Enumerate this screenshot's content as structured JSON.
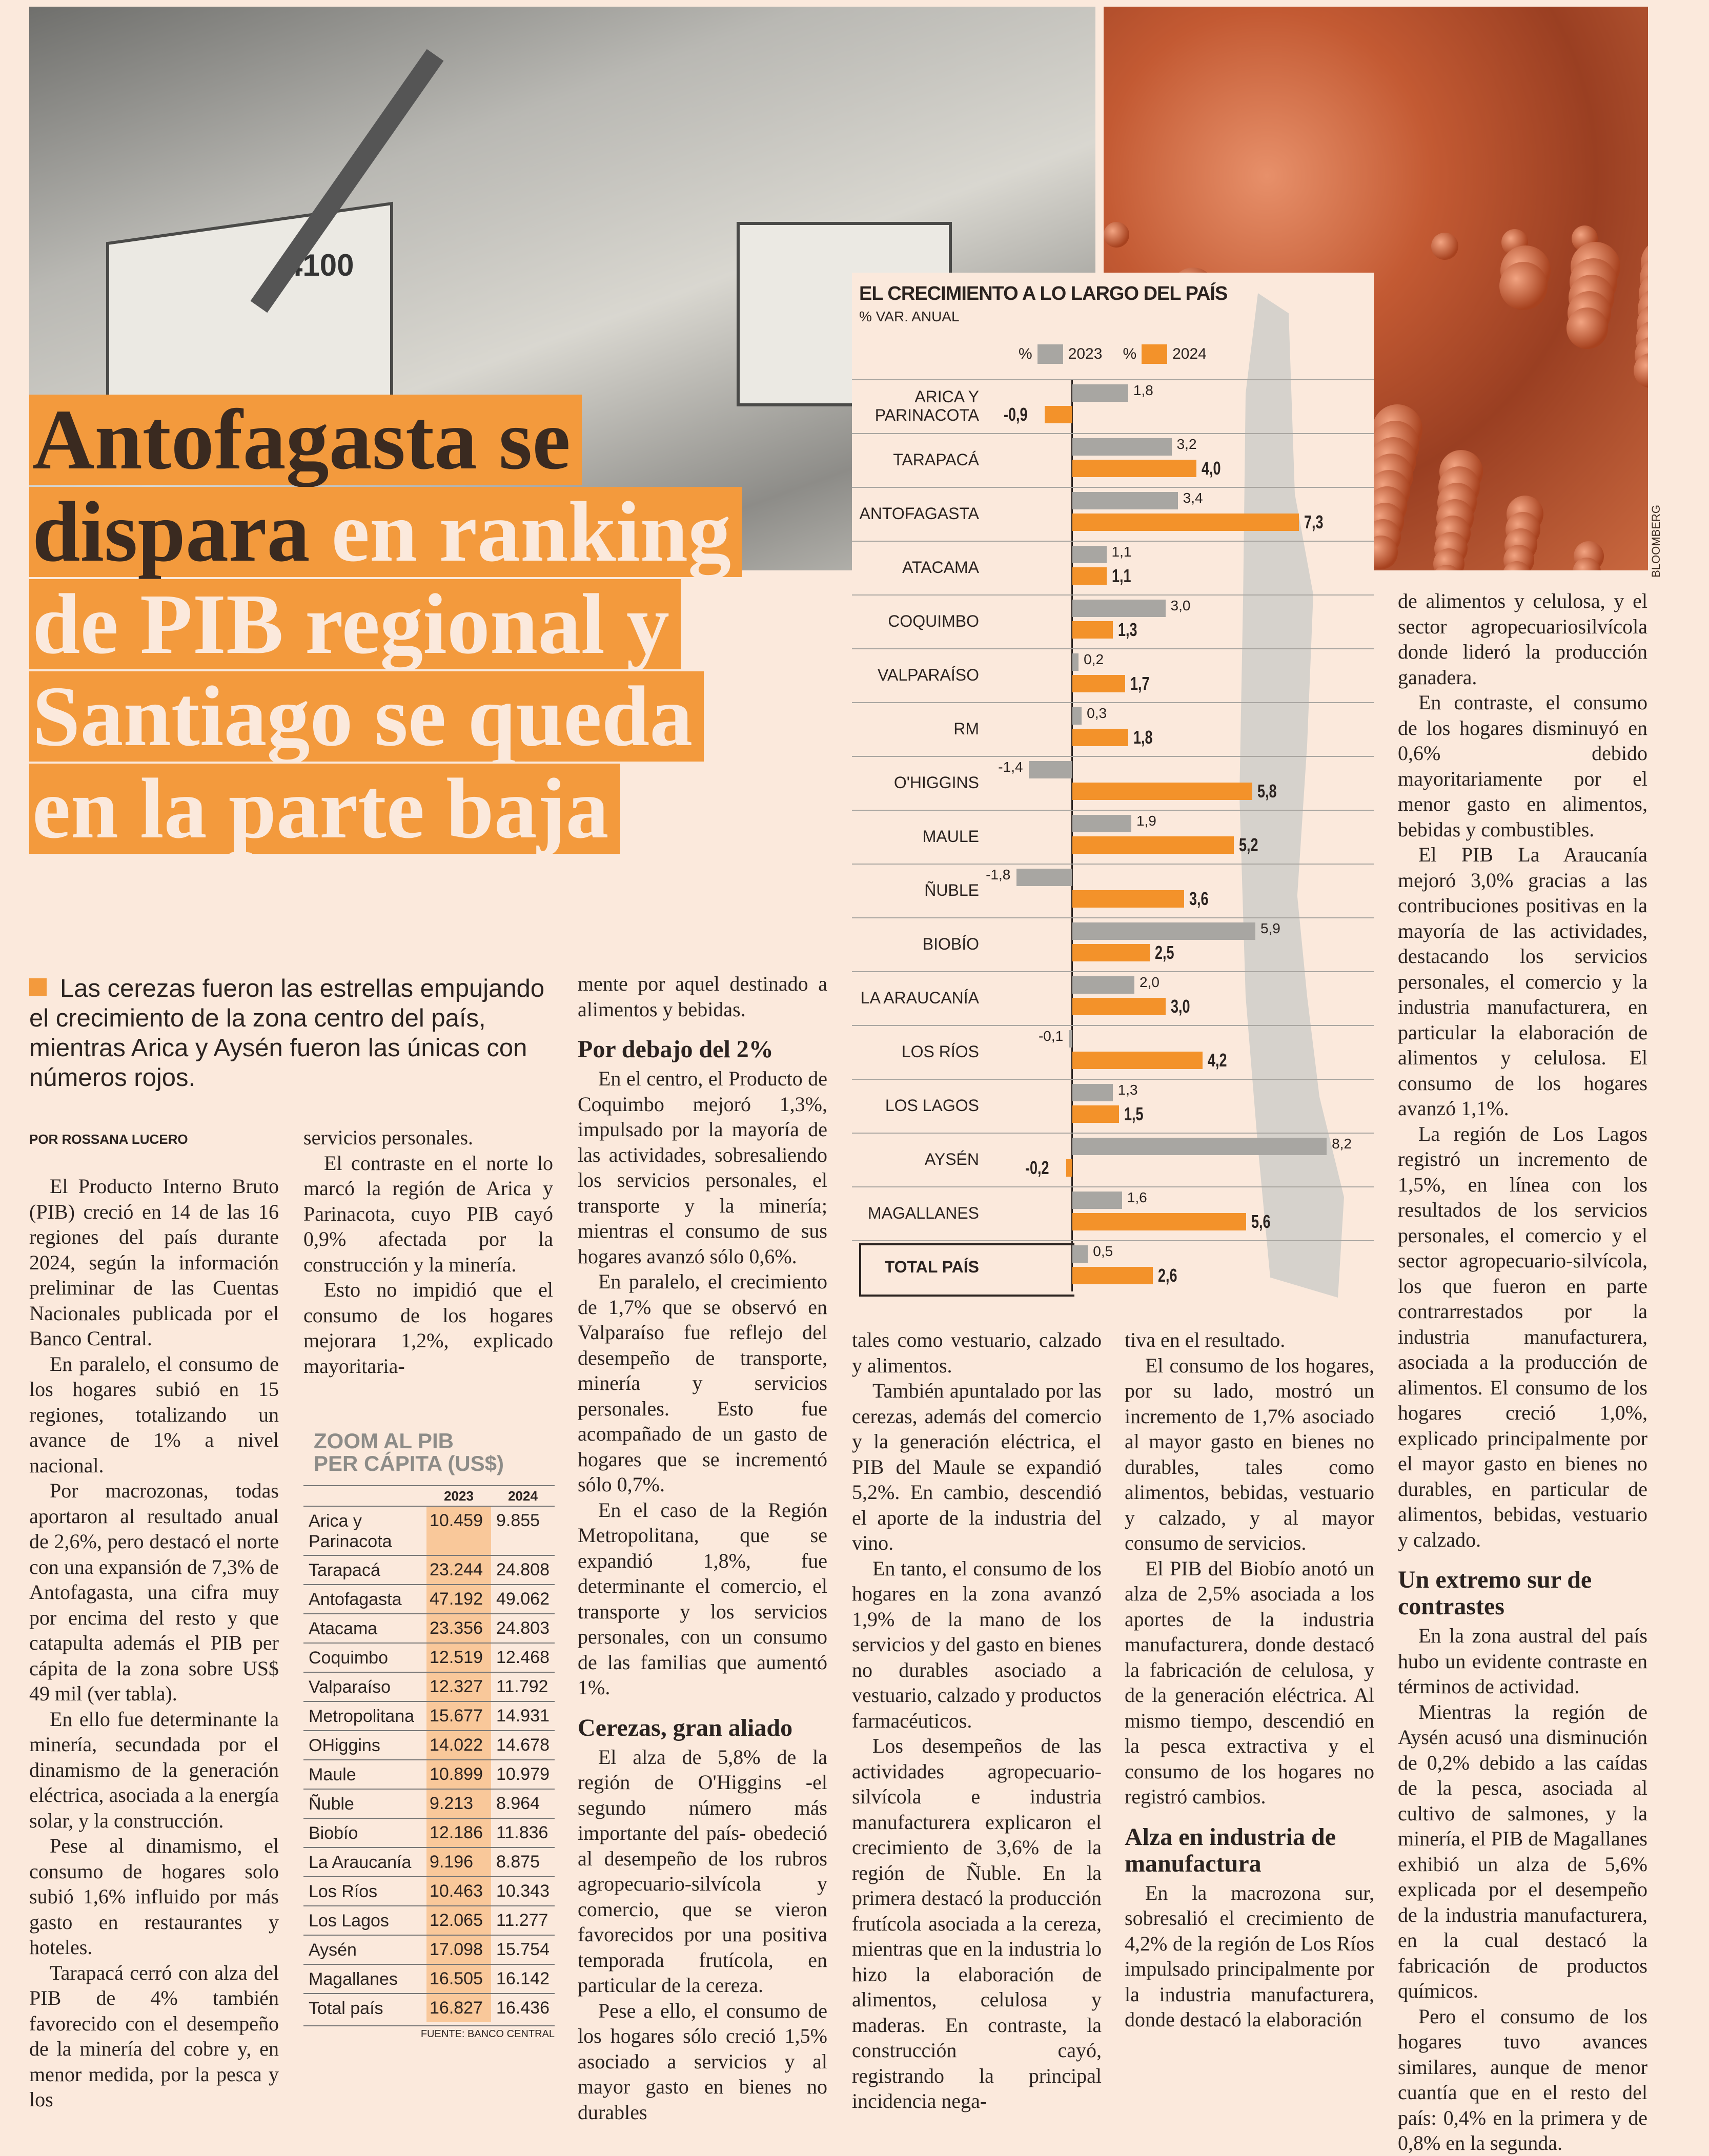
{
  "headline": {
    "dark": [
      "Antofagasta se",
      "dispara"
    ],
    "dark_tail": " en ranking",
    "light": [
      "de PIB regional y",
      "Santiago se queda",
      "en la parte baja"
    ]
  },
  "photo_credit": "BLOOMBERG",
  "machine_label": "4100",
  "lead": "Las cerezas fueron las estrellas empujando el crecimiento de la zona centro del país, mientras Arica y Aysén fueron las únicas con números rojos.",
  "byline": "POR ROSSANA LUCERO",
  "columns": [
    [
      {
        "t": "p",
        "text": "El Producto Interno Bruto (PIB) creció en 14 de las 16 regiones del país durante 2024, según la información preliminar de las Cuentas Nacionales publicada por el Banco Central."
      },
      {
        "t": "p",
        "text": "En paralelo, el consumo de los hogares subió en 15 regiones, totalizando un avance de 1% a nivel nacional."
      },
      {
        "t": "p",
        "text": "Por macrozonas, todas aportaron al resultado anual de 2,6%, pero destacó el norte con una expansión de 7,3% de Antofagasta, una cifra muy por encima del resto y que catapulta además el PIB per cápita de la zona sobre US$ 49 mil (ver tabla)."
      },
      {
        "t": "p",
        "text": "En ello fue determinante la minería, secundada por el dinamismo de la generación eléctrica, asociada a la energía solar, y la construcción."
      },
      {
        "t": "p",
        "text": "Pese al dinamismo, el consumo de hogares solo subió 1,6% influido por más gasto en restaurantes y hoteles."
      },
      {
        "t": "p",
        "text": "Tarapacá cerró con alza del PIB de 4% también favorecido con el desempeño de la minería del cobre y, en menor medida, por la pesca y los"
      }
    ],
    [
      {
        "t": "c",
        "text": "servicios personales."
      },
      {
        "t": "p",
        "text": "El contraste en el norte lo marcó la región de Arica y Parinacota, cuyo PIB cayó 0,9% afectada por la construcción y la minería."
      },
      {
        "t": "p",
        "text": "Esto no impidió que el consumo de los hogares mejorara 1,2%, explicado mayoritaria-"
      }
    ],
    [
      {
        "t": "c",
        "text": "mente por aquel destinado a alimentos y bebidas."
      },
      {
        "t": "h",
        "text": "Por debajo del 2%"
      },
      {
        "t": "p",
        "text": "En el centro, el Producto de Coquimbo mejoró 1,3%, impulsado por la mayoría de las actividades, sobresaliendo los servicios personales, el transporte y la minería; mientras el consumo de sus hogares avanzó sólo 0,6%."
      },
      {
        "t": "p",
        "text": "En paralelo, el crecimiento de 1,7% que se observó en Valparaíso fue reflejo del desempeño de transporte, minería y servicios personales. Esto fue acompañado de un gasto de hogares que se incrementó sólo 0,7%."
      },
      {
        "t": "p",
        "text": "En el caso de la Región Metropolitana, que se expandió 1,8%, fue determinante el comercio, el transporte y los servicios personales, con un consumo de las familias que aumentó 1%."
      },
      {
        "t": "h",
        "text": "Cerezas, gran aliado"
      },
      {
        "t": "p",
        "text": "El alza de 5,8% de la región de O'Higgins -el segundo número más importante del país- obedeció al desempeño de los rubros agropecuario-silvícola y comercio, que se vieron favorecidos por una positiva temporada frutícola, en particular de la cereza."
      },
      {
        "t": "p",
        "text": "Pese a ello, el consumo de los hogares sólo creció 1,5% asociado a servicios y al mayor gasto en bienes no durables"
      }
    ],
    [
      {
        "t": "c",
        "text": "tales como vestuario, calzado y alimentos."
      },
      {
        "t": "p",
        "text": "También apuntalado por las cerezas, además del comercio y la generación eléctrica, el PIB del Maule se expandió 5,2%. En cambio, descendió el aporte de la industria del vino."
      },
      {
        "t": "p",
        "text": "En tanto, el consumo de los hogares en la zona avanzó 1,9% de la mano de los servicios y del gasto en bienes no durables asociado a vestuario, calzado y productos farmacéuticos."
      },
      {
        "t": "p",
        "text": "Los desempeños de las actividades agropecuario-silvícola e industria manufacturera explicaron el crecimiento de 3,6% de la región de Ñuble. En la primera destacó la producción frutícola asociada a la cereza, mientras que en la industria lo hizo la elaboración de alimentos, celulosa y maderas. En contraste, la construcción cayó, registrando la principal incidencia nega-"
      }
    ],
    [
      {
        "t": "c",
        "text": "tiva en el resultado."
      },
      {
        "t": "p",
        "text": "El consumo de los hogares, por su lado, mostró un incremento de 1,7% asociado al mayor gasto en bienes no durables, tales como alimentos, bebidas, vestuario y calzado, y al mayor consumo de servicios."
      },
      {
        "t": "p",
        "text": "El PIB del Biobío anotó un alza de 2,5% asociada a los aportes de la industria manufacturera, donde destacó la fabricación de celulosa, y de la generación eléctrica. Al mismo tiempo, descendió en la pesca extractiva y el consumo de los hogares no registró cambios."
      },
      {
        "t": "h",
        "text": "Alza en industria de manufactura"
      },
      {
        "t": "p",
        "text": "En la macrozona sur, sobresalió el crecimiento de 4,2% de la región de Los Ríos impulsado principalmente por la industria manufacturera, donde destacó la elaboración"
      }
    ],
    [
      {
        "t": "c",
        "text": "de alimentos y celulosa, y el sector agropecuariosilvícola donde lideró la producción ganadera."
      },
      {
        "t": "p",
        "text": "En contraste, el consumo de los hogares disminuyó en 0,6% debido mayoritariamente por el menor gasto en alimentos, bebidas y combustibles."
      },
      {
        "t": "p",
        "text": "El PIB La Araucanía mejoró 3,0% gracias a las contribuciones positivas en la mayoría de las actividades, destacando los servicios personales, el comercio y la industria manufacturera, en particular la elaboración de alimentos y celulosa. El consumo de los hogares avanzó 1,1%."
      },
      {
        "t": "p",
        "text": "La región de Los Lagos registró un incremento de 1,5%, en línea con los resultados de los servicios personales, el comercio y el sector agropecuario-silvícola, los que fueron en parte contrarrestados por la industria manufacturera, asociada a la producción de alimentos. El consumo de los hogares creció 1,0%, explicado principalmente por el mayor gasto en bienes no durables, en particular de alimentos, bebidas, vestuario y calzado."
      },
      {
        "t": "h",
        "text": "Un extremo sur de contrastes"
      },
      {
        "t": "p",
        "text": "En la zona austral del país hubo un evidente contraste en términos de actividad."
      },
      {
        "t": "p",
        "text": "Mientras la región de Aysén acusó una disminución de 0,2% debido a las caídas de la pesca, asociada al cultivo de salmones, y la minería, el PIB de Magallanes exhibió un alza de 5,6% explicada por el desempeño de la industria manufacturera, en la cual destacó la fabricación de productos químicos."
      },
      {
        "t": "p",
        "text": "Pero el consumo de los hogares tuvo avances similares, aunque de menor cuantía que en el resto del país: 0,4% en la primera y de 0,8% en la segunda."
      }
    ]
  ],
  "chart_data": {
    "type": "bar",
    "title": "EL CRECIMIENTO A LO LARGO DEL PAÍS",
    "subtitle": "% VAR. ANUAL",
    "legend_prefix": "%",
    "categories": [
      "ARICA Y PARINACOTA",
      "TARAPACÁ",
      "ANTOFAGASTA",
      "ATACAMA",
      "COQUIMBO",
      "VALPARAÍSO",
      "RM",
      "O'HIGGINS",
      "MAULE",
      "ÑUBLE",
      "BIOBÍO",
      "LA ARAUCANÍA",
      "LOS RÍOS",
      "LOS LAGOS",
      "AYSÉN",
      "MAGALLANES",
      "TOTAL PAÍS"
    ],
    "series": [
      {
        "name": "2023",
        "color": "#a8a6a2",
        "values": [
          1.8,
          3.2,
          3.4,
          1.1,
          3.0,
          0.2,
          0.3,
          -1.4,
          1.9,
          -1.8,
          5.9,
          2.0,
          -0.1,
          1.3,
          8.2,
          1.6,
          0.5
        ],
        "labels": [
          "1,8",
          "3,2",
          "3,4",
          "1,1",
          "3,0",
          "0,2",
          "0,3",
          "-1,4",
          "1,9",
          "-1,8",
          "5,9",
          "2,0",
          "-0,1",
          "1,3",
          "8,2",
          "1,6",
          "0,5"
        ]
      },
      {
        "name": "2024",
        "color": "#f3922a",
        "values": [
          -0.9,
          4.0,
          7.3,
          1.1,
          1.3,
          1.7,
          1.8,
          5.8,
          5.2,
          3.6,
          2.5,
          3.0,
          4.2,
          1.5,
          -0.2,
          5.6,
          2.6
        ],
        "labels": [
          "-0,9",
          "4,0",
          "7,3",
          "1,1",
          "1,3",
          "1,7",
          "1,8",
          "5,8",
          "5,2",
          "3,6",
          "2,5",
          "3,0",
          "4,2",
          "1,5",
          "-0,2",
          "5,6",
          "2,6"
        ]
      }
    ],
    "orientation": "horizontal"
  },
  "table": {
    "title": [
      "ZOOM AL PIB",
      "PER CÁPITA  (US$)"
    ],
    "headers": [
      "",
      "2023",
      "2024"
    ],
    "rows": [
      [
        "Arica y Parinacota",
        "10.459",
        "9.855"
      ],
      [
        "Tarapacá",
        "23.244",
        "24.808"
      ],
      [
        "Antofagasta",
        "47.192",
        "49.062"
      ],
      [
        "Atacama",
        "23.356",
        "24.803"
      ],
      [
        "Coquimbo",
        "12.519",
        "12.468"
      ],
      [
        "Valparaíso",
        "12.327",
        "11.792"
      ],
      [
        "Metropolitana",
        "15.677",
        "14.931"
      ],
      [
        "OHiggins",
        "14.022",
        "14.678"
      ],
      [
        "Maule",
        "10.899",
        "10.979"
      ],
      [
        "Ñuble",
        "9.213",
        "8.964"
      ],
      [
        "Biobío",
        "12.186",
        "11.836"
      ],
      [
        "La Araucanía",
        "9.196",
        "8.875"
      ],
      [
        "Los Ríos",
        "10.463",
        "10.343"
      ],
      [
        "Los Lagos",
        "12.065",
        "11.277"
      ],
      [
        "Aysén",
        "17.098",
        "15.754"
      ],
      [
        "Magallanes",
        "16.505",
        "16.142"
      ],
      [
        "Total país",
        "16.827",
        "16.436"
      ]
    ],
    "source": "FUENTE: BANCO CENTRAL"
  }
}
